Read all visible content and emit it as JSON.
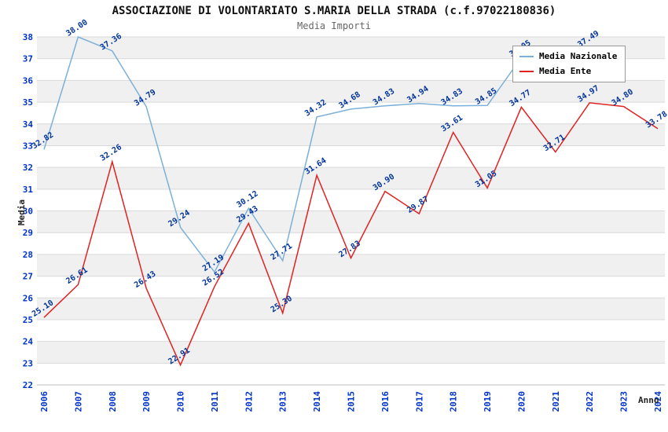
{
  "header": {
    "title": "ASSOCIAZIONE DI VOLONTARIATO S.MARIA DELLA STRADA (c.f.97022180836)",
    "subtitle": "Media Importi"
  },
  "legend": {
    "items": [
      {
        "label": "Media Nazionale",
        "color": "#7cb0d8"
      },
      {
        "label": "Media Ente",
        "color": "#e02222"
      }
    ]
  },
  "colors": {
    "band": "#f0f0f0",
    "grid": "#d9d9d9",
    "axis_line": "#bbbbbb",
    "tick_label": "#0033cc",
    "point_label": "#003399",
    "title": "#111111",
    "subtitle": "#666666"
  },
  "chart_data": {
    "type": "line",
    "title": "ASSOCIAZIONE DI VOLONTARIATO S.MARIA DELLA STRADA (c.f.97022180836)",
    "subtitle": "Media Importi",
    "xlabel": "Anno",
    "ylabel": "Media",
    "ylim": [
      22,
      38
    ],
    "grid": "horizontal",
    "legend_position": "top-right",
    "x": [
      2006,
      2007,
      2008,
      2009,
      2010,
      2011,
      2012,
      2013,
      2014,
      2015,
      2016,
      2017,
      2018,
      2019,
      2020,
      2021,
      2022,
      2023,
      2024
    ],
    "x_ticks": [
      "2006",
      "2007",
      "2008",
      "2009",
      "2010",
      "2011",
      "2012",
      "2013",
      "2014",
      "2015",
      "2016",
      "2017",
      "2018",
      "2019",
      "2020",
      "2021",
      "2022",
      "2023",
      "2024"
    ],
    "y_ticks": [
      22,
      23,
      24,
      25,
      26,
      27,
      28,
      29,
      30,
      31,
      32,
      33,
      34,
      35,
      36,
      37,
      38
    ],
    "series": [
      {
        "name": "Media Nazionale",
        "color": "#7cb0d8",
        "values": [
          32.82,
          38.0,
          37.36,
          34.79,
          29.24,
          27.19,
          30.12,
          27.71,
          34.32,
          34.68,
          34.83,
          34.94,
          34.83,
          34.85,
          37.05,
          null,
          37.49,
          null,
          null
        ]
      },
      {
        "name": "Media Ente",
        "color": "#e02222",
        "values": [
          25.1,
          26.61,
          32.26,
          26.43,
          22.91,
          26.52,
          29.43,
          25.3,
          31.64,
          27.83,
          30.9,
          29.87,
          33.61,
          31.05,
          34.77,
          32.71,
          34.97,
          34.8,
          33.78
        ]
      }
    ]
  }
}
